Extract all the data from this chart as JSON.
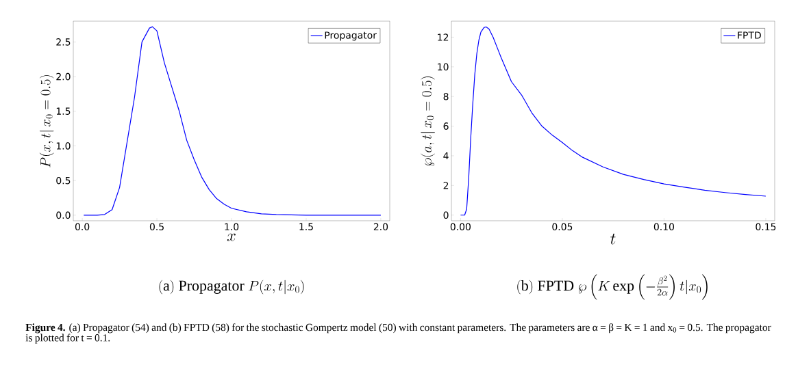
{
  "chart_data": [
    {
      "type": "line",
      "title": "\\mathrm{(a)\\ Propagator}\\ P(x,t|x_0)",
      "xlabel": "x",
      "ylabel": "P(x,t|\\,x_0=0.5)",
      "xlim": [
        -0.06,
        2.06
      ],
      "ylim": [
        -0.08,
        2.8
      ],
      "xticks": [
        {
          "value": 0,
          "label": "0.0"
        },
        {
          "value": 0.5,
          "label": "0.5"
        },
        {
          "value": 1,
          "label": "1.0"
        },
        {
          "value": 1.5,
          "label": "1.5"
        },
        {
          "value": 2,
          "label": "2.0"
        }
      ],
      "yticks": [
        {
          "value": 0,
          "label": "0.0"
        },
        {
          "value": 0.5,
          "label": "0.5"
        },
        {
          "value": 1,
          "label": "1.0"
        },
        {
          "value": 1.5,
          "label": "1.5"
        },
        {
          "value": 2,
          "label": "2.0"
        },
        {
          "value": 2.5,
          "label": "2.5"
        }
      ],
      "legend": "top right",
      "series": [
        {
          "name": "Propagator",
          "color": "#0000ff",
          "x": [
            0.01,
            0.1,
            0.15,
            0.2,
            0.25,
            0.3,
            0.35,
            0.4,
            0.45,
            0.47,
            0.5,
            0.55,
            0.6,
            0.65,
            0.7,
            0.75,
            0.8,
            0.85,
            0.9,
            0.95,
            1.0,
            1.1,
            1.2,
            1.3,
            1.5,
            1.75,
            2.0
          ],
          "values": [
            0,
            0,
            0.01,
            0.08,
            0.4,
            1.05,
            1.7,
            2.5,
            2.7,
            2.72,
            2.66,
            2.2,
            1.85,
            1.5,
            1.08,
            0.8,
            0.55,
            0.37,
            0.24,
            0.16,
            0.1,
            0.05,
            0.02,
            0.01,
            0,
            0,
            0
          ]
        }
      ],
      "annotations": [
        "**Figure 4.** (a) Propagator (54) and (b) FPTD (58) for the stochastic Gompertz model (50) with constant parameters. The parameters are α = β = K = 1 and x$_{0}$ = 0.5. The propagator is plotted for t = 0.1."
      ]
    },
    {
      "type": "line",
      "title": "\\mathrm{(b)\\ FPTD}\\ \\wp\\left(K\\exp\\left(-\\frac{\\beta^2}{2\\alpha}\\right)t|x_0\\right)",
      "xlabel": "t",
      "ylabel": "\\wp(a,t|\\,x_0=0.5)",
      "xlim": [
        -0.0045,
        0.1544
      ],
      "ylim": [
        -0.38,
        13.08
      ],
      "xticks": [
        {
          "value": 0,
          "label": "0.00"
        },
        {
          "value": 0.05,
          "label": "0.05"
        },
        {
          "value": 0.1,
          "label": "0.10"
        },
        {
          "value": 0.15,
          "label": "0.15"
        }
      ],
      "yticks": [
        0,
        2,
        4,
        6,
        8,
        10,
        12
      ],
      "legend": "top right",
      "series": [
        {
          "name": "FPTD",
          "color": "#0000ff",
          "x": [
            0,
            0.002,
            0.003,
            0.004,
            0.005,
            0.006,
            0.007,
            0.008,
            0.009,
            0.01,
            0.0115,
            0.0125,
            0.014,
            0.016,
            0.018,
            0.02,
            0.0225,
            0.025,
            0.03,
            0.035,
            0.04,
            0.045,
            0.05,
            0.055,
            0.06,
            0.07,
            0.08,
            0.09,
            0.1,
            0.11,
            0.12,
            0.13,
            0.14,
            0.15
          ],
          "values": [
            0,
            0,
            0.4,
            2.5,
            5.2,
            7.5,
            9.5,
            10.9,
            11.8,
            12.35,
            12.65,
            12.7,
            12.55,
            12.0,
            11.3,
            10.6,
            9.8,
            9.0,
            8.1,
            6.9,
            6.0,
            5.4,
            4.9,
            4.35,
            3.9,
            3.25,
            2.75,
            2.4,
            2.1,
            1.88,
            1.68,
            1.52,
            1.39,
            1.28
          ]
        }
      ]
    }
  ]
}
